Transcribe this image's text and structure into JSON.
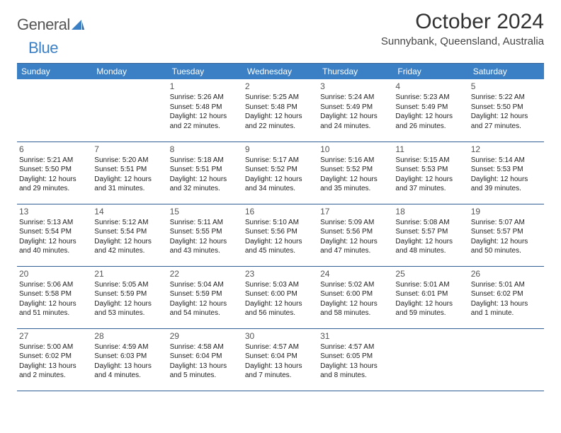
{
  "logo": {
    "text_gray": "General",
    "text_blue": "Blue"
  },
  "title": "October 2024",
  "location": "Sunnybank, Queensland, Australia",
  "colors": {
    "header_bg": "#3b7fc4",
    "header_text": "#ffffff",
    "rule": "#2f5f95",
    "body_text": "#222222",
    "daynum_text": "#555555",
    "background": "#ffffff"
  },
  "columns": [
    "Sunday",
    "Monday",
    "Tuesday",
    "Wednesday",
    "Thursday",
    "Friday",
    "Saturday"
  ],
  "weeks": [
    [
      null,
      null,
      {
        "n": "1",
        "lines": [
          "Sunrise: 5:26 AM",
          "Sunset: 5:48 PM",
          "Daylight: 12 hours",
          "and 22 minutes."
        ]
      },
      {
        "n": "2",
        "lines": [
          "Sunrise: 5:25 AM",
          "Sunset: 5:48 PM",
          "Daylight: 12 hours",
          "and 22 minutes."
        ]
      },
      {
        "n": "3",
        "lines": [
          "Sunrise: 5:24 AM",
          "Sunset: 5:49 PM",
          "Daylight: 12 hours",
          "and 24 minutes."
        ]
      },
      {
        "n": "4",
        "lines": [
          "Sunrise: 5:23 AM",
          "Sunset: 5:49 PM",
          "Daylight: 12 hours",
          "and 26 minutes."
        ]
      },
      {
        "n": "5",
        "lines": [
          "Sunrise: 5:22 AM",
          "Sunset: 5:50 PM",
          "Daylight: 12 hours",
          "and 27 minutes."
        ]
      }
    ],
    [
      {
        "n": "6",
        "lines": [
          "Sunrise: 5:21 AM",
          "Sunset: 5:50 PM",
          "Daylight: 12 hours",
          "and 29 minutes."
        ]
      },
      {
        "n": "7",
        "lines": [
          "Sunrise: 5:20 AM",
          "Sunset: 5:51 PM",
          "Daylight: 12 hours",
          "and 31 minutes."
        ]
      },
      {
        "n": "8",
        "lines": [
          "Sunrise: 5:18 AM",
          "Sunset: 5:51 PM",
          "Daylight: 12 hours",
          "and 32 minutes."
        ]
      },
      {
        "n": "9",
        "lines": [
          "Sunrise: 5:17 AM",
          "Sunset: 5:52 PM",
          "Daylight: 12 hours",
          "and 34 minutes."
        ]
      },
      {
        "n": "10",
        "lines": [
          "Sunrise: 5:16 AM",
          "Sunset: 5:52 PM",
          "Daylight: 12 hours",
          "and 35 minutes."
        ]
      },
      {
        "n": "11",
        "lines": [
          "Sunrise: 5:15 AM",
          "Sunset: 5:53 PM",
          "Daylight: 12 hours",
          "and 37 minutes."
        ]
      },
      {
        "n": "12",
        "lines": [
          "Sunrise: 5:14 AM",
          "Sunset: 5:53 PM",
          "Daylight: 12 hours",
          "and 39 minutes."
        ]
      }
    ],
    [
      {
        "n": "13",
        "lines": [
          "Sunrise: 5:13 AM",
          "Sunset: 5:54 PM",
          "Daylight: 12 hours",
          "and 40 minutes."
        ]
      },
      {
        "n": "14",
        "lines": [
          "Sunrise: 5:12 AM",
          "Sunset: 5:54 PM",
          "Daylight: 12 hours",
          "and 42 minutes."
        ]
      },
      {
        "n": "15",
        "lines": [
          "Sunrise: 5:11 AM",
          "Sunset: 5:55 PM",
          "Daylight: 12 hours",
          "and 43 minutes."
        ]
      },
      {
        "n": "16",
        "lines": [
          "Sunrise: 5:10 AM",
          "Sunset: 5:56 PM",
          "Daylight: 12 hours",
          "and 45 minutes."
        ]
      },
      {
        "n": "17",
        "lines": [
          "Sunrise: 5:09 AM",
          "Sunset: 5:56 PM",
          "Daylight: 12 hours",
          "and 47 minutes."
        ]
      },
      {
        "n": "18",
        "lines": [
          "Sunrise: 5:08 AM",
          "Sunset: 5:57 PM",
          "Daylight: 12 hours",
          "and 48 minutes."
        ]
      },
      {
        "n": "19",
        "lines": [
          "Sunrise: 5:07 AM",
          "Sunset: 5:57 PM",
          "Daylight: 12 hours",
          "and 50 minutes."
        ]
      }
    ],
    [
      {
        "n": "20",
        "lines": [
          "Sunrise: 5:06 AM",
          "Sunset: 5:58 PM",
          "Daylight: 12 hours",
          "and 51 minutes."
        ]
      },
      {
        "n": "21",
        "lines": [
          "Sunrise: 5:05 AM",
          "Sunset: 5:59 PM",
          "Daylight: 12 hours",
          "and 53 minutes."
        ]
      },
      {
        "n": "22",
        "lines": [
          "Sunrise: 5:04 AM",
          "Sunset: 5:59 PM",
          "Daylight: 12 hours",
          "and 54 minutes."
        ]
      },
      {
        "n": "23",
        "lines": [
          "Sunrise: 5:03 AM",
          "Sunset: 6:00 PM",
          "Daylight: 12 hours",
          "and 56 minutes."
        ]
      },
      {
        "n": "24",
        "lines": [
          "Sunrise: 5:02 AM",
          "Sunset: 6:00 PM",
          "Daylight: 12 hours",
          "and 58 minutes."
        ]
      },
      {
        "n": "25",
        "lines": [
          "Sunrise: 5:01 AM",
          "Sunset: 6:01 PM",
          "Daylight: 12 hours",
          "and 59 minutes."
        ]
      },
      {
        "n": "26",
        "lines": [
          "Sunrise: 5:01 AM",
          "Sunset: 6:02 PM",
          "Daylight: 13 hours",
          "and 1 minute."
        ]
      }
    ],
    [
      {
        "n": "27",
        "lines": [
          "Sunrise: 5:00 AM",
          "Sunset: 6:02 PM",
          "Daylight: 13 hours",
          "and 2 minutes."
        ]
      },
      {
        "n": "28",
        "lines": [
          "Sunrise: 4:59 AM",
          "Sunset: 6:03 PM",
          "Daylight: 13 hours",
          "and 4 minutes."
        ]
      },
      {
        "n": "29",
        "lines": [
          "Sunrise: 4:58 AM",
          "Sunset: 6:04 PM",
          "Daylight: 13 hours",
          "and 5 minutes."
        ]
      },
      {
        "n": "30",
        "lines": [
          "Sunrise: 4:57 AM",
          "Sunset: 6:04 PM",
          "Daylight: 13 hours",
          "and 7 minutes."
        ]
      },
      {
        "n": "31",
        "lines": [
          "Sunrise: 4:57 AM",
          "Sunset: 6:05 PM",
          "Daylight: 13 hours",
          "and 8 minutes."
        ]
      },
      null,
      null
    ]
  ]
}
